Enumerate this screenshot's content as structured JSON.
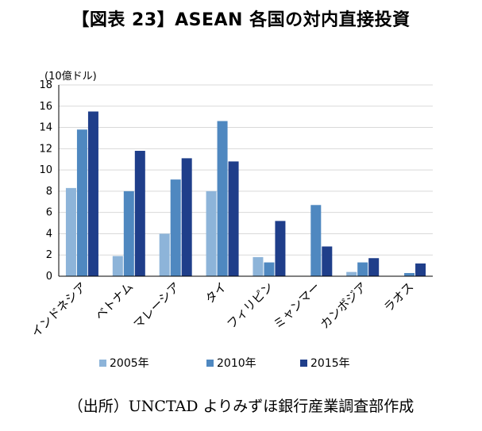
{
  "title": "【図表 23】ASEAN 各国の対内直接投資",
  "source": "（出所）UNCTAD よりみずほ銀行産業調査部作成",
  "chart_data": {
    "type": "bar",
    "unit_label": "(10億ドル)",
    "categories": [
      "インドネシア",
      "ベトナム",
      "マレーシア",
      "タイ",
      "フィリピン",
      "ミャンマー",
      "カンボジア",
      "ラオス"
    ],
    "series": [
      {
        "name": "2005年",
        "color": "#8db4d9",
        "values": [
          8.3,
          1.9,
          4.0,
          8.0,
          1.8,
          0.0,
          0.4,
          0.0
        ]
      },
      {
        "name": "2010年",
        "color": "#4f88c0",
        "values": [
          13.8,
          8.0,
          9.1,
          14.6,
          1.3,
          6.7,
          1.3,
          0.3
        ]
      },
      {
        "name": "2015年",
        "color": "#1f3e8a",
        "values": [
          15.5,
          11.8,
          11.1,
          10.8,
          5.2,
          2.8,
          1.7,
          1.2
        ]
      }
    ],
    "ylim": [
      0,
      18
    ],
    "yticks": [
      0,
      2,
      4,
      6,
      8,
      10,
      12,
      14,
      16,
      18
    ],
    "grid": true,
    "legend_position": "bottom"
  }
}
